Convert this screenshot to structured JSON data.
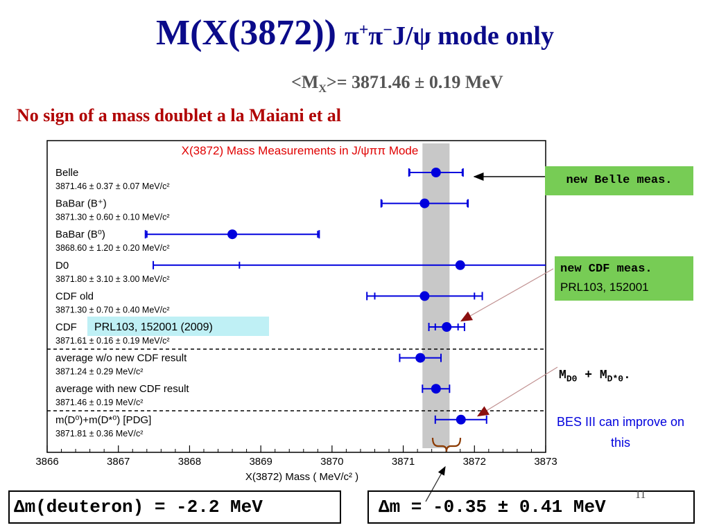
{
  "slide": {
    "title_main": "M(X(3872))",
    "title_pi": "π",
    "title_plus": "+",
    "title_pi2": "π",
    "title_minus": "−",
    "title_rest": "J/ψ mode only",
    "mean_prefix": "<M",
    "mean_sub": "X",
    "mean_value": ">= 3871.46 ± 0.19 MeV",
    "subtitle": "No sign of a mass doublet a la Maiani et al",
    "belle_note": "new Belle meas.",
    "cdf_note_1": "new CDF meas.",
    "cdf_note_2": "PRL103, 152001",
    "md_note_m1": "M",
    "md_note_sub1": "D0",
    "md_note_plus": " + M",
    "md_note_sub2": "D*0",
    "md_note_dot": ".",
    "bes_note": "BES III can improve on this",
    "deuteron_box": "Δm(deuteron) = -2.2 MeV",
    "dm_box": "Δm = -0.35 ± 0.41 MeV",
    "page_number": "11"
  },
  "chart_data": {
    "type": "scatter",
    "title": "X(3872) Mass Measurements in J/ψππ Mode",
    "xlabel": "X(3872) Mass  ( MeV/c² )",
    "xlim": [
      3866,
      3873
    ],
    "x_ticks": [
      "3866",
      "3867",
      "3868",
      "3869",
      "3870",
      "3871",
      "3872",
      "3873"
    ],
    "band": [
      3871.27,
      3871.65
    ],
    "cdf_ref_label": "PRL103, 152001 (2009)",
    "colors": {
      "title": "#e00000",
      "points": "#0000dd",
      "band": "#c8c8c8"
    },
    "measurements": [
      {
        "label": "Belle",
        "value_text": "3871.46 ± 0.37 ± 0.07 MeV/c²",
        "x": 3871.46,
        "inner": 0.37,
        "outer": 0.38
      },
      {
        "label": "BaBar (B⁺)",
        "value_text": "3871.30 ± 0.60 ± 0.10 MeV/c²",
        "x": 3871.3,
        "inner": 0.6,
        "outer": 0.61
      },
      {
        "label": "BaBar (B⁰)",
        "value_text": "3868.60 ± 1.20 ± 0.20 MeV/c²",
        "x": 3868.6,
        "inner": 1.2,
        "outer": 1.22
      },
      {
        "label": "D0",
        "value_text": "3871.80 ± 3.10 ± 3.00 MeV/c²",
        "x": 3871.8,
        "inner": 3.1,
        "outer": 4.31
      },
      {
        "label": "CDF old",
        "value_text": "3871.30 ± 0.70 ± 0.40 MeV/c²",
        "x": 3871.3,
        "inner": 0.7,
        "outer": 0.81
      },
      {
        "label": "CDF",
        "value_text": "3871.61 ± 0.16 ± 0.19 MeV/c²",
        "x": 3871.61,
        "inner": 0.16,
        "outer": 0.25
      },
      {
        "label": "average w/o new CDF result",
        "value_text": "3871.24 ± 0.29 MeV/c²",
        "x": 3871.24,
        "inner": 0.29,
        "outer": 0.29
      },
      {
        "label": "average with new CDF result",
        "value_text": "3871.46 ± 0.19 MeV/c²",
        "x": 3871.46,
        "inner": 0.19,
        "outer": 0.19
      },
      {
        "label": "m(D⁰)+m(D*⁰) [PDG]",
        "value_text": "3871.81 ± 0.36 MeV/c²",
        "x": 3871.81,
        "inner": 0.36,
        "outer": 0.36
      }
    ]
  }
}
